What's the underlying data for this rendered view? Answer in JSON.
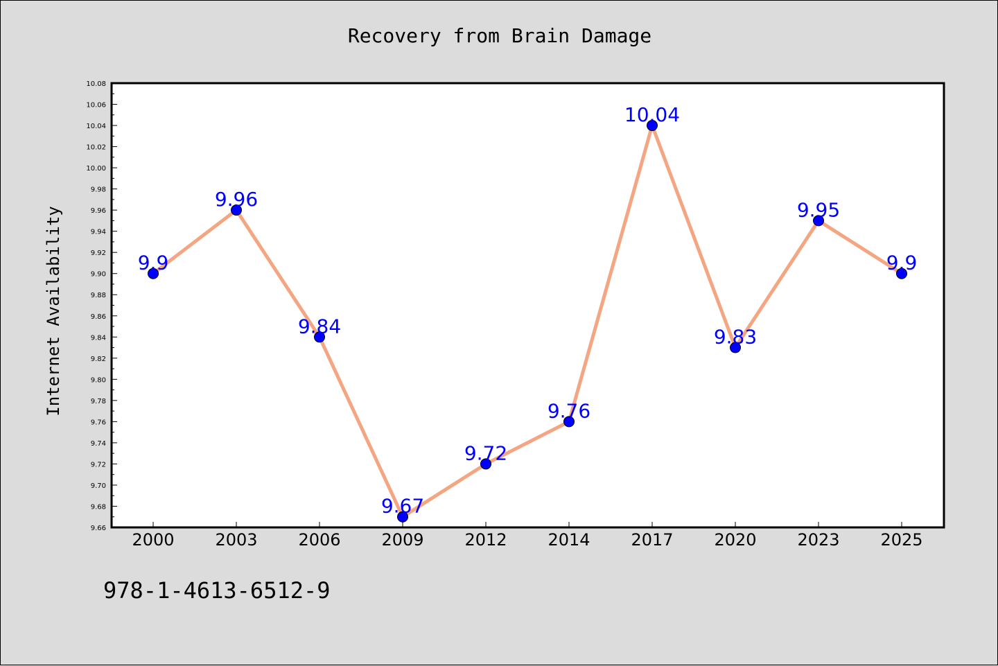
{
  "chart_data": {
    "type": "line",
    "title": "Recovery from Brain Damage",
    "xlabel": "",
    "ylabel": "Internet Availability",
    "categories": [
      "2000",
      "2003",
      "2006",
      "2009",
      "2012",
      "2014",
      "2017",
      "2020",
      "2023",
      "2025"
    ],
    "series": [
      {
        "values": [
          9.9,
          9.96,
          9.84,
          9.67,
          9.72,
          9.76,
          10.04,
          9.83,
          9.95,
          9.9
        ],
        "data_labels": [
          "9.9",
          "9.96",
          "9.84",
          "9.67",
          "9.72",
          "9.76",
          "10.04",
          "9.83",
          "9.95",
          "9.9"
        ]
      }
    ],
    "ylim": [
      9.66,
      10.08
    ],
    "yticks": [
      "9.66",
      "9.68",
      "9.70",
      "9.72",
      "9.74",
      "9.76",
      "9.78",
      "9.80",
      "9.82",
      "9.84",
      "9.86",
      "9.88",
      "9.90",
      "9.92",
      "9.94",
      "9.96",
      "9.98",
      "10.00",
      "10.02",
      "10.04",
      "10.06",
      "10.08"
    ],
    "grid": false,
    "colors": {
      "line": "#f4a582",
      "marker": "#0000ff",
      "data_label": "#0000ff",
      "plot_bg": "#ffffff",
      "figure_bg": "#dcdcdc"
    }
  },
  "footer": {
    "code": "978-1-4613-6512-9"
  }
}
